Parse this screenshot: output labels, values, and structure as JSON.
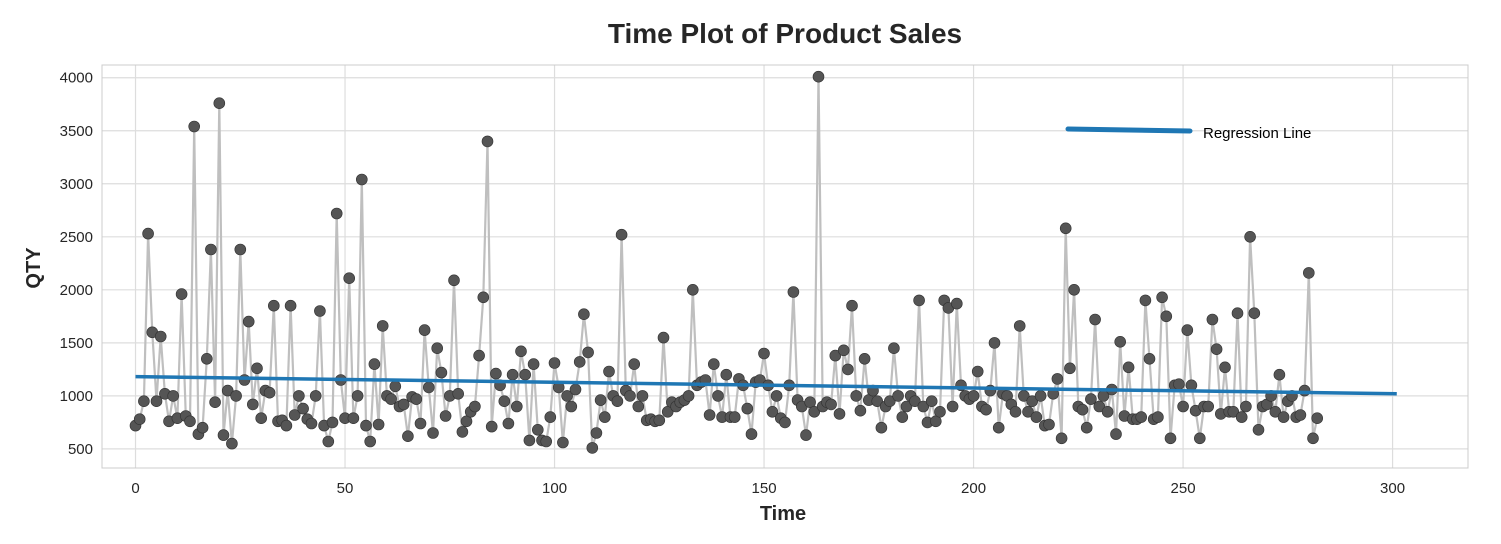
{
  "chart_data": {
    "type": "line",
    "title": "Time Plot of Product Sales",
    "xlabel": "Time",
    "ylabel": "QTY",
    "xlim": [
      -8,
      318
    ],
    "ylim": [
      320,
      4120
    ],
    "xticks": [
      0,
      50,
      100,
      150,
      200,
      250,
      300
    ],
    "yticks": [
      500,
      1000,
      1500,
      2000,
      2500,
      3000,
      3500,
      4000
    ],
    "grid": true,
    "legend_position": "upper-right",
    "colors": {
      "series_line": "#bfbfbf",
      "marker": "#555555",
      "regression": "#1f77b4"
    },
    "series": [
      {
        "name": "",
        "x_start": 0,
        "values": [
          720,
          780,
          950,
          2530,
          1600,
          950,
          1560,
          1020,
          760,
          1000,
          790,
          1960,
          810,
          760,
          3540,
          640,
          700,
          1350,
          2380,
          940,
          3760,
          630,
          1050,
          550,
          1000,
          2380,
          1150,
          1700,
          920,
          1260,
          790,
          1050,
          1030,
          1850,
          760,
          770,
          720,
          1850,
          820,
          1000,
          880,
          780,
          740,
          1000,
          1800,
          720,
          570,
          750,
          2720,
          1150,
          790,
          2110,
          790,
          1000,
          3040,
          720,
          570,
          1300,
          730,
          1660,
          1000,
          970,
          1090,
          900,
          920,
          620,
          990,
          970,
          740,
          1620,
          1080,
          650,
          1450,
          1220,
          810,
          1000,
          2090,
          1020,
          660,
          760,
          850,
          900,
          1380,
          1930,
          3400,
          710,
          1210,
          1100,
          950,
          740,
          1200,
          900,
          1420,
          1200,
          580,
          1300,
          680,
          580,
          570,
          800,
          1310,
          1080,
          560,
          1000,
          900,
          1060,
          1320,
          1770,
          1410,
          510,
          650,
          960,
          800,
          1230,
          1000,
          950,
          2520,
          1050,
          1000,
          1300,
          900,
          1000,
          770,
          780,
          760,
          770,
          1550,
          850,
          940,
          900,
          940,
          960,
          1000,
          2000,
          1100,
          1130,
          1150,
          820,
          1300,
          1000,
          800,
          1200,
          800,
          800,
          1160,
          1100,
          880,
          640,
          1130,
          1150,
          1400,
          1100,
          850,
          1000,
          790,
          750,
          1100,
          1980,
          960,
          900,
          630,
          940,
          850,
          4010,
          900,
          940,
          920,
          1380,
          830,
          1430,
          1250,
          1850,
          1000,
          860,
          1350,
          960,
          1050,
          950,
          700,
          900,
          950,
          1450,
          1000,
          800,
          900,
          1000,
          950,
          1900,
          900,
          750,
          950,
          760,
          850,
          1900,
          1830,
          900,
          1870,
          1100,
          1000,
          970,
          1000,
          1230,
          900,
          870,
          1050,
          1500,
          700,
          1020,
          1000,
          920,
          850,
          1660,
          1000,
          850,
          950,
          800,
          1000,
          720,
          730,
          1020,
          1160,
          600,
          2580,
          1260,
          2000,
          900,
          870,
          700,
          970,
          1720,
          900,
          1000,
          850,
          1060,
          640,
          1510,
          810,
          1270,
          780,
          780,
          800,
          1900,
          1350,
          780,
          800,
          1930,
          1750,
          600,
          1100,
          1110,
          900,
          1620,
          1100,
          860,
          600,
          900,
          900,
          1720,
          1440,
          830,
          1270,
          850,
          850,
          1780,
          800,
          900,
          2500,
          1780,
          680,
          900,
          920,
          1000,
          850,
          1200,
          800,
          950,
          1000,
          800,
          820,
          1050,
          2160,
          600,
          790
        ]
      }
    ],
    "regression": {
      "name": "Regression Line",
      "x": [
        0,
        301
      ],
      "y": [
        1182,
        1020
      ]
    }
  }
}
